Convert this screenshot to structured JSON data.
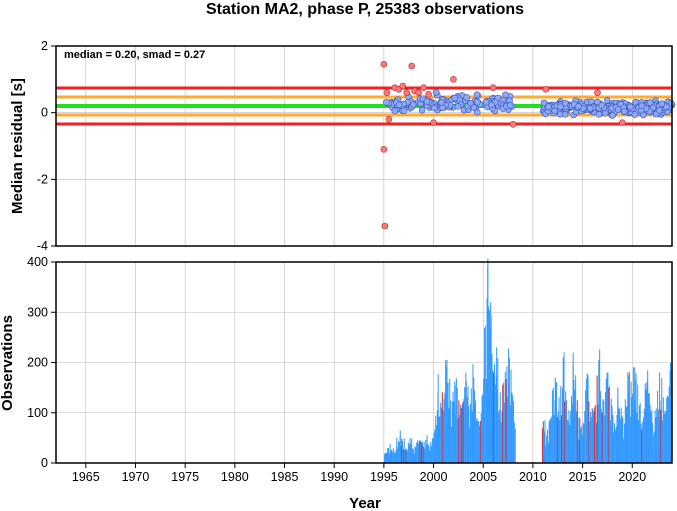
{
  "title": "Station MA2, phase P, 25383 observations",
  "colors": {
    "median_line": "#22dd22",
    "smad_line": "#ffaa33",
    "limit_line": "#ee2222",
    "point_normal": "#88aaff",
    "point_outlier": "#ff7777",
    "bar_normal": "#3399ff",
    "bar_outlier": "#dd2222",
    "grid": "#bbbbbb"
  },
  "chart_data": [
    {
      "type": "scatter",
      "ylabel": "Median residual [s]",
      "annotation": "median = 0.20, smad = 0.27",
      "xlim": [
        1962,
        2024
      ],
      "ylim": [
        -4,
        2
      ],
      "yticks": [
        "-4",
        "-2",
        "0",
        "2"
      ],
      "reference_lines": {
        "median": 0.2,
        "smad_band": [
          -0.07,
          0.47
        ],
        "limits": [
          -0.34,
          0.74
        ]
      },
      "grid": true,
      "outliers": [
        [
          1995.0,
          1.45
        ],
        [
          1995.0,
          -1.1
        ],
        [
          1995.1,
          -3.4
        ],
        [
          1995.3,
          0.6
        ],
        [
          1995.5,
          -0.2
        ],
        [
          1996.1,
          0.75
        ],
        [
          1996.5,
          0.7
        ],
        [
          1996.9,
          0.8
        ],
        [
          1997.3,
          0.6
        ],
        [
          1997.8,
          1.4
        ],
        [
          1998.1,
          0.65
        ],
        [
          1998.5,
          0.6
        ],
        [
          1999.0,
          0.75
        ],
        [
          1999.5,
          0.55
        ],
        [
          2000.0,
          -0.3
        ],
        [
          2002.0,
          1.0
        ],
        [
          2006.0,
          0.75
        ],
        [
          2008.0,
          -0.35
        ],
        [
          2011.3,
          0.7
        ],
        [
          2016.5,
          0.6
        ],
        [
          2019.0,
          -0.3
        ]
      ],
      "segments": [
        {
          "x_range": [
            1995.0,
            2008.0
          ],
          "points": 150,
          "y_center": 0.28,
          "y_spread": 0.22
        },
        {
          "x_range": [
            2011.0,
            2024.0
          ],
          "points": 300,
          "y_center": 0.15,
          "y_spread": 0.17
        }
      ]
    },
    {
      "type": "bar",
      "xlabel": "Year",
      "ylabel": "Observations",
      "xlim": [
        1962,
        2024
      ],
      "ylim": [
        0,
        400
      ],
      "xticks": [
        "1965",
        "1970",
        "1975",
        "1980",
        "1985",
        "1990",
        "1995",
        "2000",
        "2005",
        "2010",
        "2015",
        "2020"
      ],
      "yticks": [
        "0",
        "100",
        "200",
        "300",
        "400"
      ],
      "grid": true,
      "peaks": [
        [
          1995.6,
          25
        ],
        [
          1996.6,
          65
        ],
        [
          1997.6,
          40
        ],
        [
          1998.5,
          45
        ],
        [
          1999.3,
          55
        ],
        [
          2000.4,
          140
        ],
        [
          2001.3,
          205
        ],
        [
          2002.2,
          155
        ],
        [
          2003.2,
          180
        ],
        [
          2004.0,
          170
        ],
        [
          2005.4,
          392
        ],
        [
          2005.7,
          320
        ],
        [
          2006.3,
          230
        ],
        [
          2007.0,
          160
        ],
        [
          2007.5,
          228
        ],
        [
          2008.0,
          10
        ],
        [
          2011.0,
          65
        ],
        [
          2012.2,
          170
        ],
        [
          2013.0,
          210
        ],
        [
          2014.0,
          195
        ],
        [
          2015.5,
          175
        ],
        [
          2016.6,
          200
        ],
        [
          2017.5,
          180
        ],
        [
          2018.5,
          150
        ],
        [
          2019.6,
          175
        ],
        [
          2020.2,
          190
        ],
        [
          2021.5,
          165
        ],
        [
          2022.7,
          180
        ],
        [
          2023.8,
          200
        ]
      ],
      "gaps": [
        [
          2008.2,
          2010.9
        ]
      ]
    }
  ]
}
